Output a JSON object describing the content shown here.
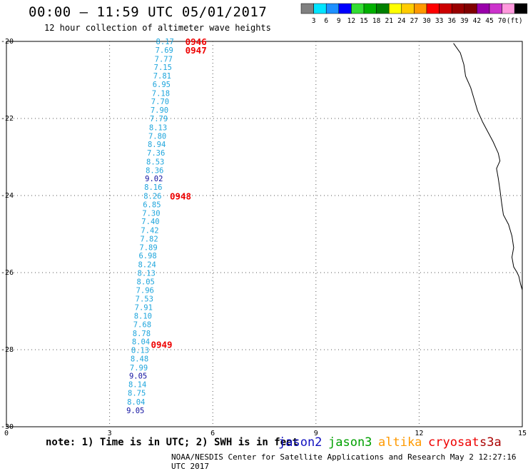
{
  "header": {
    "title": "00:00 – 11:59 UTC 05/01/2017",
    "subtitle": "12 hour collection of altimeter wave heights"
  },
  "color_scale": {
    "labels": [
      "3",
      "6",
      "9",
      "12",
      "15",
      "18",
      "21",
      "24",
      "27",
      "30",
      "33",
      "36",
      "39",
      "42",
      "45",
      "70",
      "(ft)"
    ],
    "colors": [
      "#808080",
      "#00e5ff",
      "#1e90ff",
      "#0000ff",
      "#33dd33",
      "#00b000",
      "#008000",
      "#ffff00",
      "#ffcc00",
      "#ff9900",
      "#ff0000",
      "#cc0000",
      "#990000",
      "#800000",
      "#9900aa",
      "#cc33cc",
      "#ff99dd",
      "#000000"
    ]
  },
  "note": "note: 1) Time is in UTC; 2) SWH is in feet",
  "satellites": [
    {
      "name": "jason2",
      "color": "#1010c0"
    },
    {
      "name": "jason3",
      "color": "#00a000"
    },
    {
      "name": "altika",
      "color": "#ff9900"
    },
    {
      "name": "cryosat",
      "color": "#ee0000"
    },
    {
      "name": "s3a",
      "color": "#aa0000"
    }
  ],
  "footer": "NOAA/NESDIS Center for Satellite Applications and Research   May  2 12:27:16 UTC 2017",
  "chart_data": {
    "type": "scatter",
    "xlim": [
      0,
      15
    ],
    "ylim": [
      -30,
      -20
    ],
    "x_ticks": [
      0,
      3,
      6,
      9,
      12,
      15
    ],
    "y_ticks": [
      -20,
      -22,
      -24,
      -26,
      -28,
      -30
    ],
    "grid": true,
    "point_color": "#1ea5dc",
    "dark_point_color": "#1010a0",
    "time_color": "#ee0000",
    "values": [
      {
        "x": 4.61,
        "y": -20.0,
        "v": "8.17"
      },
      {
        "x": 4.59,
        "y": -20.22,
        "v": "7.69"
      },
      {
        "x": 4.57,
        "y": -20.45,
        "v": "7.77"
      },
      {
        "x": 4.55,
        "y": -20.67,
        "v": "7.15"
      },
      {
        "x": 4.53,
        "y": -20.89,
        "v": "7.81"
      },
      {
        "x": 4.51,
        "y": -21.11,
        "v": "6.95"
      },
      {
        "x": 4.49,
        "y": -21.34,
        "v": "7.18"
      },
      {
        "x": 4.47,
        "y": -21.56,
        "v": "7.70"
      },
      {
        "x": 4.45,
        "y": -21.78,
        "v": "7.90"
      },
      {
        "x": 4.43,
        "y": -22.0,
        "v": "7.79"
      },
      {
        "x": 4.41,
        "y": -22.23,
        "v": "8.13"
      },
      {
        "x": 4.39,
        "y": -22.45,
        "v": "7.80"
      },
      {
        "x": 4.37,
        "y": -22.67,
        "v": "8.94"
      },
      {
        "x": 4.35,
        "y": -22.89,
        "v": "7.36"
      },
      {
        "x": 4.33,
        "y": -23.12,
        "v": "8.53"
      },
      {
        "x": 4.31,
        "y": -23.34,
        "v": "8.36"
      },
      {
        "x": 4.29,
        "y": -23.56,
        "v": "9.02",
        "dark": true
      },
      {
        "x": 4.27,
        "y": -23.78,
        "v": "8.16"
      },
      {
        "x": 4.25,
        "y": -24.01,
        "v": "8.26"
      },
      {
        "x": 4.23,
        "y": -24.23,
        "v": "6.85"
      },
      {
        "x": 4.21,
        "y": -24.45,
        "v": "7.30"
      },
      {
        "x": 4.19,
        "y": -24.67,
        "v": "7.40"
      },
      {
        "x": 4.17,
        "y": -24.9,
        "v": "7.42"
      },
      {
        "x": 4.15,
        "y": -25.12,
        "v": "7.82"
      },
      {
        "x": 4.13,
        "y": -25.34,
        "v": "7.89"
      },
      {
        "x": 4.11,
        "y": -25.56,
        "v": "6.98"
      },
      {
        "x": 4.09,
        "y": -25.79,
        "v": "8.24"
      },
      {
        "x": 4.07,
        "y": -26.01,
        "v": "8.13"
      },
      {
        "x": 4.05,
        "y": -26.23,
        "v": "8.05"
      },
      {
        "x": 4.03,
        "y": -26.45,
        "v": "7.96"
      },
      {
        "x": 4.01,
        "y": -26.68,
        "v": "7.53"
      },
      {
        "x": 3.99,
        "y": -26.9,
        "v": "7.91"
      },
      {
        "x": 3.97,
        "y": -27.12,
        "v": "8.10"
      },
      {
        "x": 3.95,
        "y": -27.34,
        "v": "7.68"
      },
      {
        "x": 3.93,
        "y": -27.57,
        "v": "8.78"
      },
      {
        "x": 3.91,
        "y": -27.79,
        "v": "8.04"
      },
      {
        "x": 3.89,
        "y": -28.01,
        "v": "8.13"
      },
      {
        "x": 3.87,
        "y": -28.23,
        "v": "8.48"
      },
      {
        "x": 3.85,
        "y": -28.46,
        "v": "7.99"
      },
      {
        "x": 3.83,
        "y": -28.68,
        "v": "9.05",
        "dark": true
      },
      {
        "x": 3.81,
        "y": -28.9,
        "v": "8.14"
      },
      {
        "x": 3.79,
        "y": -29.12,
        "v": "8.75"
      },
      {
        "x": 3.77,
        "y": -29.35,
        "v": "8.04"
      },
      {
        "x": 3.75,
        "y": -29.57,
        "v": "9.05",
        "dark": true
      }
    ],
    "time_labels": [
      {
        "x": 5.2,
        "y": -20.0,
        "t": "0946"
      },
      {
        "x": 5.2,
        "y": -20.22,
        "t": "0947"
      },
      {
        "x": 4.75,
        "y": -24.01,
        "t": "0948"
      },
      {
        "x": 4.2,
        "y": -27.86,
        "t": "0949"
      }
    ],
    "coastline": [
      [
        13.0,
        -20.05
      ],
      [
        13.2,
        -20.3
      ],
      [
        13.3,
        -20.6
      ],
      [
        13.35,
        -20.9
      ],
      [
        13.5,
        -21.2
      ],
      [
        13.6,
        -21.5
      ],
      [
        13.7,
        -21.8
      ],
      [
        13.85,
        -22.1
      ],
      [
        14.0,
        -22.35
      ],
      [
        14.15,
        -22.6
      ],
      [
        14.3,
        -22.9
      ],
      [
        14.35,
        -23.1
      ],
      [
        14.25,
        -23.3
      ],
      [
        14.3,
        -23.55
      ],
      [
        14.35,
        -23.85
      ],
      [
        14.4,
        -24.2
      ],
      [
        14.45,
        -24.5
      ],
      [
        14.6,
        -24.75
      ],
      [
        14.7,
        -25.05
      ],
      [
        14.75,
        -25.35
      ],
      [
        14.7,
        -25.6
      ],
      [
        14.75,
        -25.85
      ],
      [
        14.85,
        -26.0
      ],
      [
        14.9,
        -26.1
      ],
      [
        14.95,
        -26.3
      ],
      [
        15.0,
        -26.45
      ]
    ]
  }
}
